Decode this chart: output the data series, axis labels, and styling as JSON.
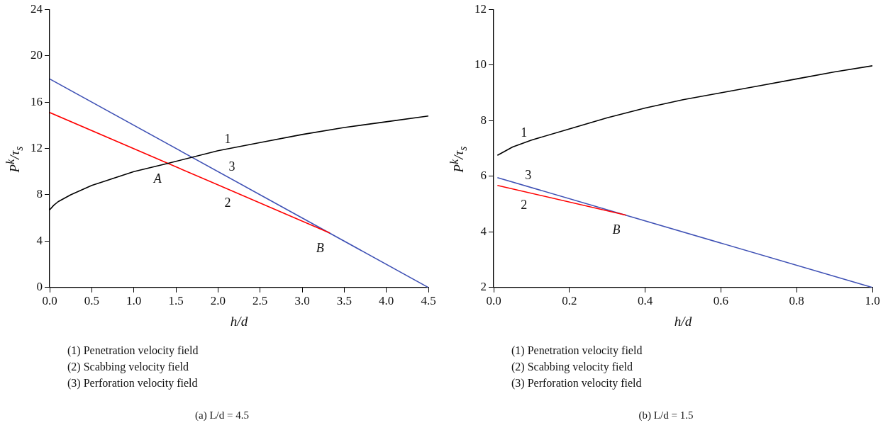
{
  "chart_data": [
    {
      "type": "line",
      "title": "(a) L/d = 4.5",
      "xlabel": "h/d",
      "ylabel": "P$^{k}$/τ$_{s}$",
      "xlim": [
        0,
        4.5
      ],
      "xticks": [
        {
          "value": 0,
          "label": "0.0"
        },
        0.5,
        {
          "value": 1,
          "label": "1.0"
        },
        1.5,
        {
          "value": 2,
          "label": "2.0"
        },
        2.5,
        {
          "value": 3,
          "label": "3.0"
        },
        3.5,
        {
          "value": 4,
          "label": "4.0"
        },
        4.5
      ],
      "ylim": [
        0,
        24
      ],
      "yticks": [
        0,
        4,
        8,
        12,
        16,
        20,
        24
      ],
      "grid": false,
      "legend": false,
      "marker": "none",
      "line_style": "solid",
      "series": [
        {
          "name": "1",
          "color": "#000000",
          "x": [
            0,
            0.05,
            0.1,
            0.25,
            0.5,
            0.75,
            1.0,
            1.4,
            2.0,
            2.5,
            3.0,
            3.5,
            4.0,
            4.5
          ],
          "values": [
            6.7,
            7.1,
            7.4,
            8.0,
            8.8,
            9.4,
            10.0,
            10.7,
            11.8,
            12.5,
            13.2,
            13.8,
            14.3,
            14.8
          ]
        },
        {
          "name": "2",
          "color": "#ff0000",
          "x": [
            0,
            3.33
          ],
          "values": [
            15.1,
            4.7
          ]
        },
        {
          "name": "3",
          "color": "#3f51b5",
          "x": [
            0,
            4.5
          ],
          "values": [
            18,
            0
          ]
        }
      ],
      "annotations": [
        {
          "text": "A",
          "x": 1.4,
          "y": 10.7
        },
        {
          "text": "B",
          "x": 3.33,
          "y": 4.7
        },
        "(1) Penetration velocity field",
        "(2) Scabbing velocity field",
        "(3) Perforation velocity field"
      ]
    },
    {
      "type": "line",
      "title": "(b) L/d = 1.5",
      "xlabel": "h/d",
      "ylabel": "P$^{k}$/τ$_{s}$",
      "xlim": [
        0,
        1
      ],
      "xticks": [
        {
          "value": 0,
          "label": "0.0"
        },
        0.2,
        0.4,
        0.6,
        0.8,
        {
          "value": 1,
          "label": "1.0"
        }
      ],
      "ylim": [
        2,
        12
      ],
      "yticks": [
        2,
        4,
        6,
        8,
        10,
        12
      ],
      "grid": false,
      "legend": false,
      "marker": "none",
      "line_style": "solid",
      "series": [
        {
          "name": "1",
          "color": "#000000",
          "x": [
            0.01,
            0.05,
            0.1,
            0.2,
            0.3,
            0.4,
            0.5,
            0.6,
            0.7,
            0.8,
            0.9,
            1.0
          ],
          "values": [
            6.75,
            7.05,
            7.3,
            7.7,
            8.1,
            8.45,
            8.75,
            9.0,
            9.25,
            9.5,
            9.75,
            9.97
          ]
        },
        {
          "name": "2",
          "color": "#ff0000",
          "x": [
            0.01,
            0.35
          ],
          "values": [
            5.67,
            4.6
          ]
        },
        {
          "name": "3",
          "color": "#3f51b5",
          "x": [
            0.01,
            1.0
          ],
          "values": [
            5.95,
            2.0
          ]
        }
      ],
      "annotations": [
        {
          "text": "B",
          "x": 0.35,
          "y": 4.6
        },
        "(1) Penetration velocity field",
        "(2) Scabbing velocity field",
        "(3) Perforation velocity field"
      ]
    }
  ]
}
